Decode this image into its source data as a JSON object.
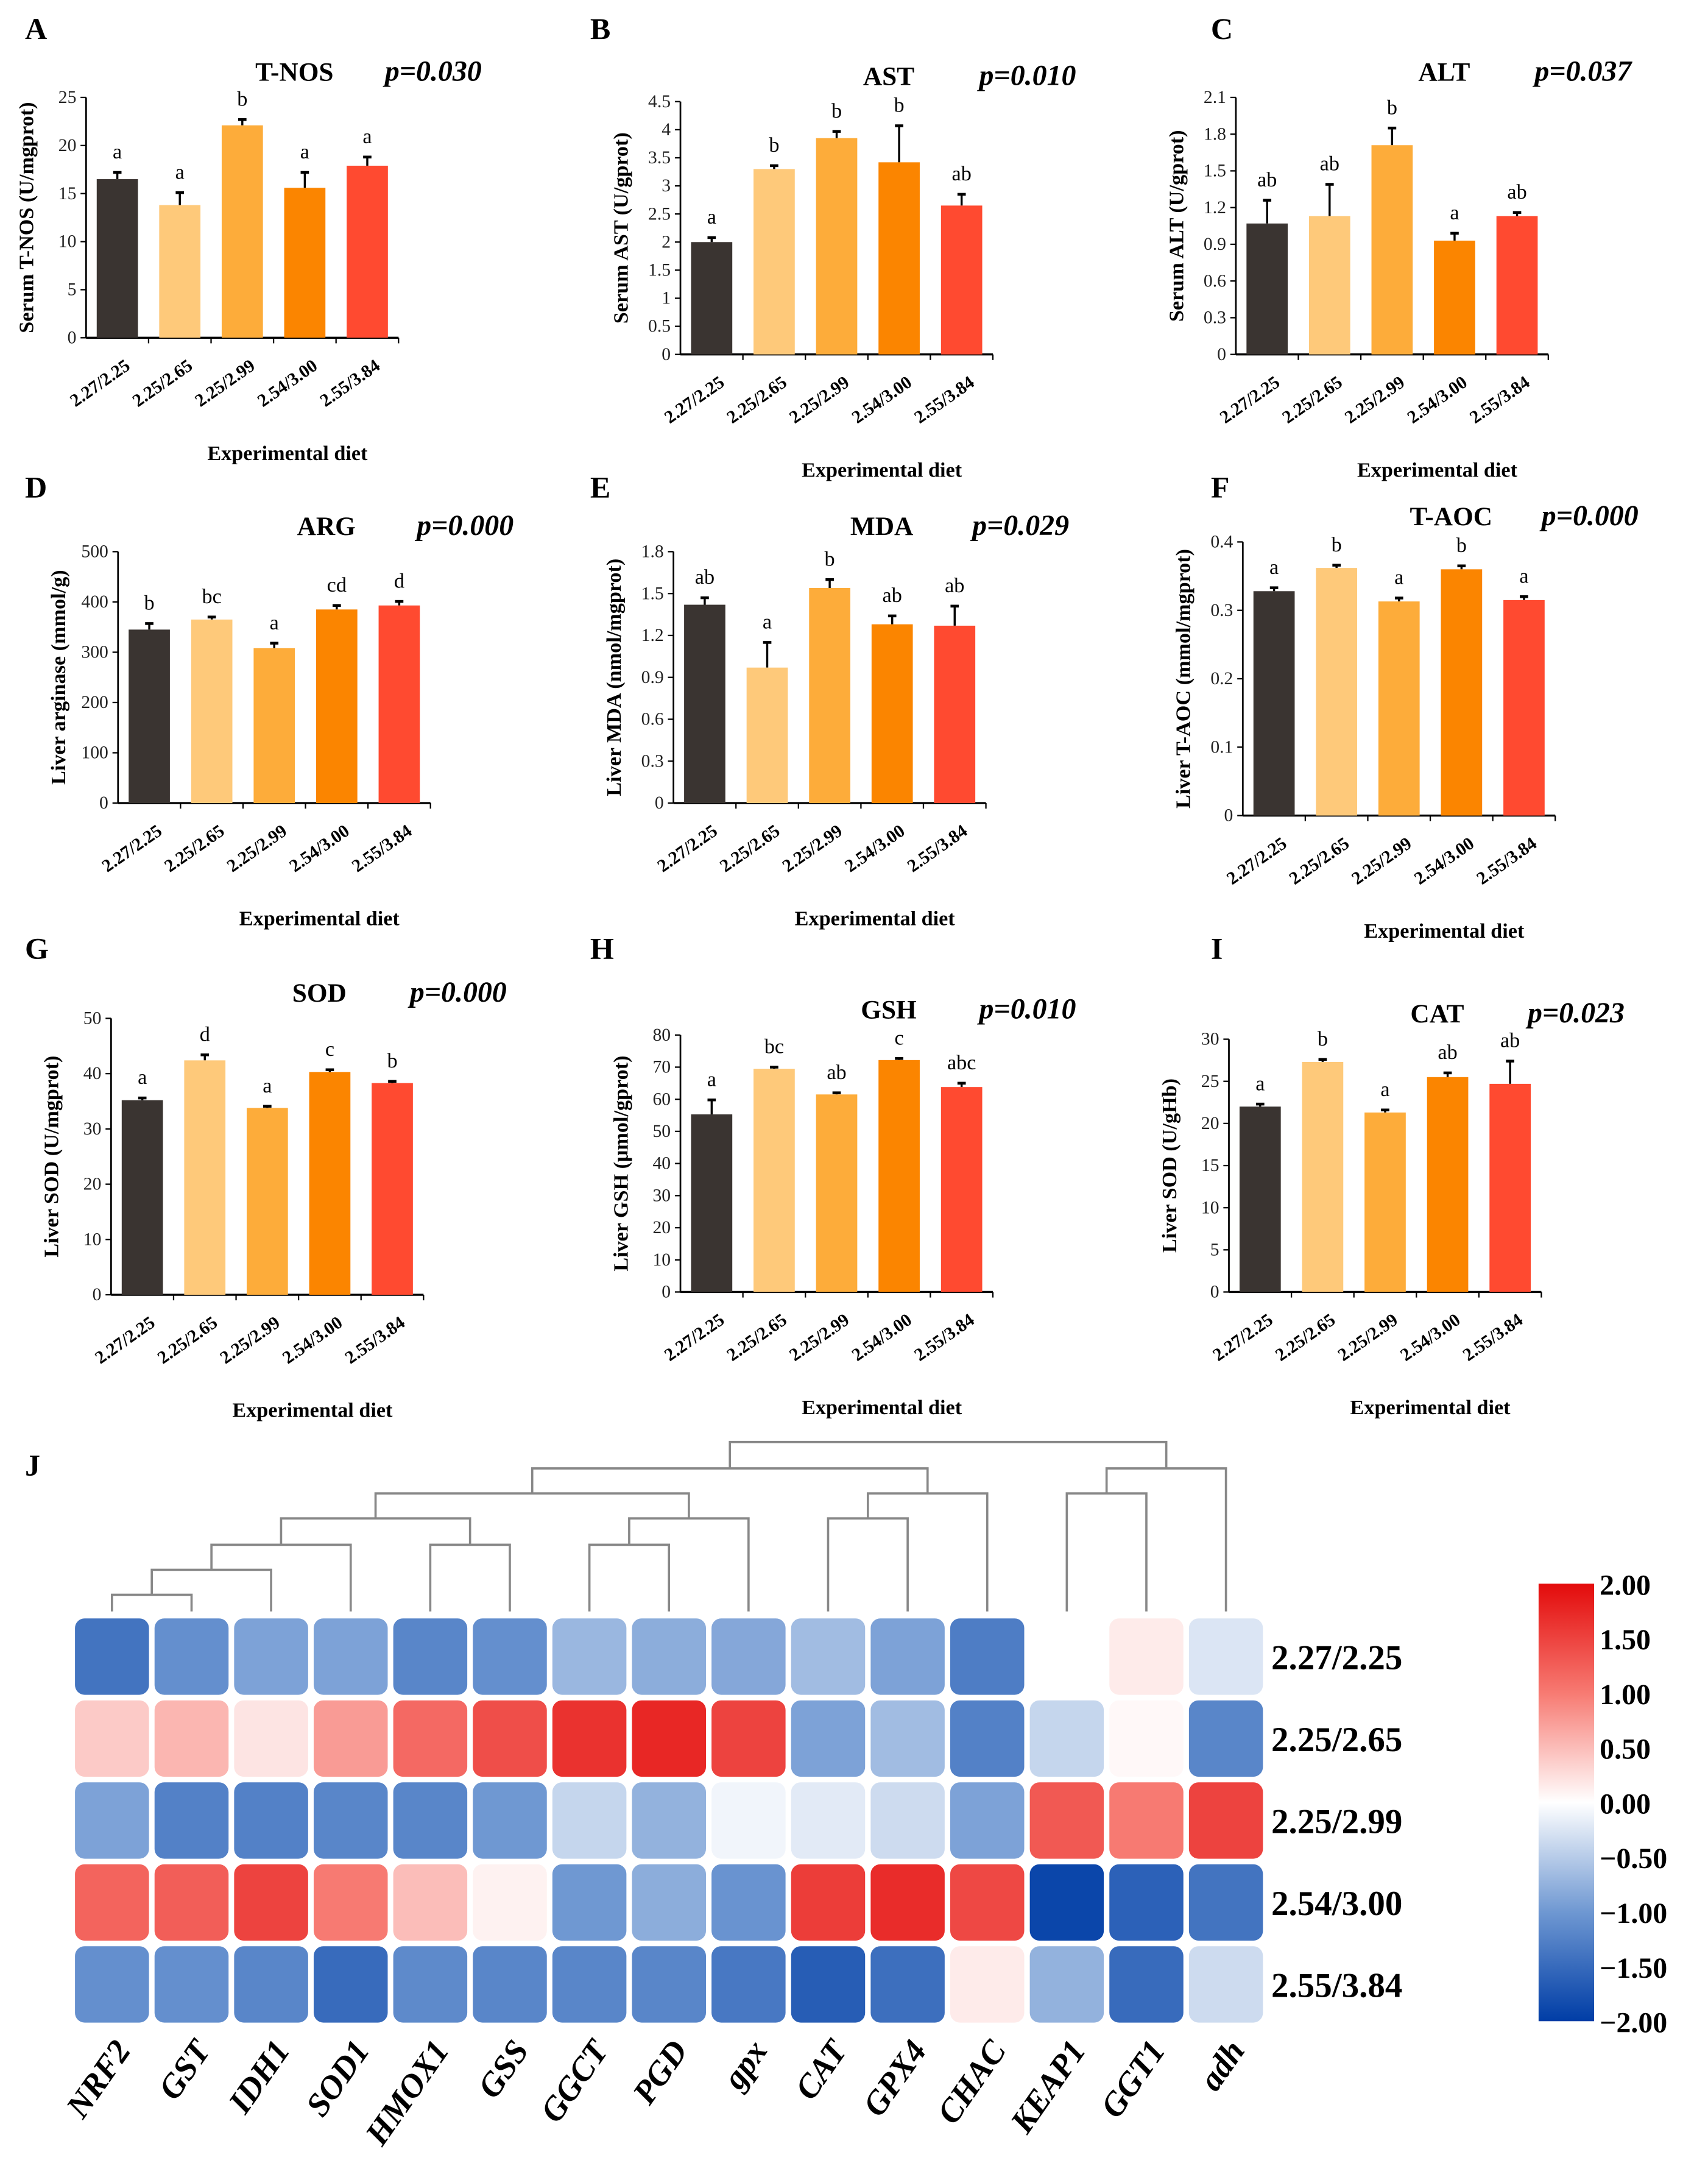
{
  "colors": {
    "groups": [
      "#3a3431",
      "#fec97a",
      "#fdac3a",
      "#fb8500",
      "#ff4a30"
    ]
  },
  "chart_data": [
    {
      "panel": "A",
      "type": "bar",
      "title": "T-NOS",
      "p_value": "p=0.030",
      "ylabel": "Serum T-NOS (U/mgprot)",
      "xlabel": "Experimental diet",
      "categories": [
        "2.27/2.25",
        "2.25/2.65",
        "2.25/2.99",
        "2.54/3.00",
        "2.55/3.84"
      ],
      "values": [
        16.5,
        13.8,
        22.1,
        15.6,
        17.9
      ],
      "errors": [
        0.7,
        1.3,
        0.6,
        1.6,
        0.9
      ],
      "letters": [
        "a",
        "a",
        "b",
        "a",
        "a"
      ],
      "ylim": [
        0,
        25
      ],
      "ystep": 5,
      "yticks": [
        "0",
        "5",
        "10",
        "15",
        "20",
        "25"
      ]
    },
    {
      "panel": "B",
      "type": "bar",
      "title": "AST",
      "p_value": "p=0.010",
      "ylabel": "Serum AST (U/gprot)",
      "xlabel": "Experimental diet",
      "categories": [
        "2.27/2.25",
        "2.25/2.65",
        "2.25/2.99",
        "2.54/3.00",
        "2.55/3.84"
      ],
      "values": [
        2.0,
        3.3,
        3.85,
        3.42,
        2.65
      ],
      "errors": [
        0.08,
        0.06,
        0.12,
        0.65,
        0.2
      ],
      "letters": [
        "a",
        "b",
        "b",
        "b",
        "ab"
      ],
      "ylim": [
        0,
        4.5
      ],
      "ystep": 0.5,
      "yticks": [
        "0",
        "0.5",
        "1",
        "1.5",
        "2",
        "2.5",
        "3",
        "3.5",
        "4",
        "4.5"
      ]
    },
    {
      "panel": "C",
      "type": "bar",
      "title": "ALT",
      "p_value": "p=0.037",
      "ylabel": "Serum ALT (U/gprot)",
      "xlabel": "Experimental diet",
      "categories": [
        "2.27/2.25",
        "2.25/2.65",
        "2.25/2.99",
        "2.54/3.00",
        "2.55/3.84"
      ],
      "values": [
        1.07,
        1.13,
        1.71,
        0.93,
        1.13
      ],
      "errors": [
        0.19,
        0.26,
        0.14,
        0.06,
        0.03
      ],
      "letters": [
        "ab",
        "ab",
        "b",
        "a",
        "ab"
      ],
      "ylim": [
        0,
        2.1
      ],
      "ystep": 0.3,
      "yticks": [
        "0",
        "0.3",
        "0.6",
        "0.9",
        "1.2",
        "1.5",
        "1.8",
        "2.1"
      ]
    },
    {
      "panel": "D",
      "type": "bar",
      "title": "ARG",
      "p_value": "p=0.000",
      "ylabel": "Liver arginase (mmol/g)",
      "xlabel": "Experimental diet",
      "categories": [
        "2.27/2.25",
        "2.25/2.65",
        "2.25/2.99",
        "2.54/3.00",
        "2.55/3.84"
      ],
      "values": [
        345,
        365,
        308,
        385,
        393
      ],
      "errors": [
        12,
        5,
        10,
        8,
        8
      ],
      "letters": [
        "b",
        "bc",
        "a",
        "cd",
        "d"
      ],
      "ylim": [
        0,
        500
      ],
      "ystep": 100,
      "yticks": [
        "0",
        "100",
        "200",
        "300",
        "400",
        "500"
      ]
    },
    {
      "panel": "E",
      "type": "bar",
      "title": "MDA",
      "p_value": "p=0.029",
      "ylabel": "Liver MDA (nmol/mgprot)",
      "xlabel": "Experimental diet",
      "categories": [
        "2.27/2.25",
        "2.25/2.65",
        "2.25/2.99",
        "2.54/3.00",
        "2.55/3.84"
      ],
      "values": [
        1.42,
        0.97,
        1.54,
        1.28,
        1.27
      ],
      "errors": [
        0.05,
        0.18,
        0.06,
        0.06,
        0.14
      ],
      "letters": [
        "ab",
        "a",
        "b",
        "ab",
        "ab"
      ],
      "ylim": [
        0,
        1.8
      ],
      "ystep": 0.3,
      "yticks": [
        "0",
        "0.3",
        "0.6",
        "0.9",
        "1.2",
        "1.5",
        "1.8"
      ]
    },
    {
      "panel": "F",
      "type": "bar",
      "title": "T-AOC",
      "p_value": "p=0.000",
      "ylabel": "Liver T-AOC (mmol/mgprot)",
      "xlabel": "Experimental diet",
      "categories": [
        "2.27/2.25",
        "2.25/2.65",
        "2.25/2.99",
        "2.54/3.00",
        "2.55/3.84"
      ],
      "values": [
        0.328,
        0.362,
        0.313,
        0.36,
        0.315
      ],
      "errors": [
        0.005,
        0.004,
        0.005,
        0.005,
        0.005
      ],
      "letters": [
        "a",
        "b",
        "a",
        "b",
        "a"
      ],
      "ylim": [
        0,
        0.4
      ],
      "ystep": 0.1,
      "yticks": [
        "0",
        "0.1",
        "0.2",
        "0.3",
        "0.4"
      ]
    },
    {
      "panel": "G",
      "type": "bar",
      "title": "SOD",
      "p_value": "p=0.000",
      "ylabel": "Liver SOD (U/mgprot)",
      "xlabel": "Experimental diet",
      "categories": [
        "2.27/2.25",
        "2.25/2.65",
        "2.25/2.99",
        "2.54/3.00",
        "2.55/3.84"
      ],
      "values": [
        35.2,
        42.4,
        33.8,
        40.3,
        38.3
      ],
      "errors": [
        0.4,
        1.0,
        0.3,
        0.4,
        0.3
      ],
      "letters": [
        "a",
        "d",
        "a",
        "c",
        "b"
      ],
      "ylim": [
        0,
        50
      ],
      "ystep": 10,
      "yticks": [
        "0",
        "10",
        "20",
        "30",
        "40",
        "50"
      ]
    },
    {
      "panel": "H",
      "type": "bar",
      "title": "GSH",
      "p_value": "p=0.010",
      "ylabel": "Liver GSH (μmol/gprot)",
      "xlabel": "Experimental diet",
      "categories": [
        "2.27/2.25",
        "2.25/2.65",
        "2.25/2.99",
        "2.54/3.00",
        "2.55/3.84"
      ],
      "values": [
        55.3,
        69.5,
        61.5,
        72.2,
        63.8
      ],
      "errors": [
        4.5,
        0.5,
        0.5,
        0.5,
        1.2
      ],
      "letters": [
        "a",
        "bc",
        "ab",
        "c",
        "abc"
      ],
      "ylim": [
        0,
        80
      ],
      "ystep": 10,
      "yticks": [
        "0",
        "10",
        "20",
        "30",
        "40",
        "50",
        "60",
        "70",
        "80"
      ]
    },
    {
      "panel": "I",
      "type": "bar",
      "title": "CAT",
      "p_value": "p=0.023",
      "ylabel": "Liver SOD (U/gHb)",
      "xlabel": "Experimental diet",
      "categories": [
        "2.27/2.25",
        "2.25/2.65",
        "2.25/2.99",
        "2.54/3.00",
        "2.55/3.84"
      ],
      "values": [
        22.0,
        27.3,
        21.3,
        25.5,
        24.7
      ],
      "errors": [
        0.3,
        0.3,
        0.3,
        0.5,
        2.7
      ],
      "letters": [
        "a",
        "b",
        "a",
        "ab",
        "ab"
      ],
      "ylim": [
        0,
        30
      ],
      "ystep": 5,
      "yticks": [
        "0",
        "5",
        "10",
        "15",
        "20",
        "25",
        "30"
      ]
    },
    {
      "panel": "J",
      "type": "heatmap",
      "columns": [
        "NRF2",
        "GST",
        "IDH1",
        "SOD1",
        "HMOX1",
        "GSS",
        "GGCT",
        "PGD",
        "gpx",
        "CAT",
        "GPX4",
        "CHAC",
        "KEAP1",
        "GGT1",
        "adh"
      ],
      "rows": [
        "2.27/2.25",
        "2.25/2.65",
        "2.25/2.99",
        "2.54/3.00",
        "2.55/3.84"
      ],
      "values": [
        [
          -1.4,
          -1.1,
          -0.9,
          -0.9,
          -1.2,
          -1.1,
          -0.7,
          -0.8,
          -0.85,
          -0.65,
          -0.9,
          -1.3,
          0.0,
          0.15,
          -0.25
        ],
        [
          0.4,
          0.55,
          0.2,
          0.75,
          1.15,
          1.4,
          1.65,
          1.75,
          1.5,
          -0.9,
          -0.65,
          -1.25,
          -0.4,
          0.05,
          -1.2
        ],
        [
          -0.9,
          -1.25,
          -1.25,
          -1.2,
          -1.2,
          -1.0,
          -0.4,
          -0.75,
          -0.1,
          -0.2,
          -0.35,
          -0.9,
          1.3,
          1.0,
          1.5
        ],
        [
          1.2,
          1.25,
          1.5,
          1.0,
          0.5,
          0.1,
          -1.0,
          -0.8,
          -1.05,
          1.55,
          1.7,
          1.45,
          -1.9,
          -1.6,
          -1.4
        ],
        [
          -1.1,
          -1.1,
          -1.2,
          -1.5,
          -1.15,
          -1.2,
          -1.2,
          -1.2,
          -1.35,
          -1.65,
          -1.45,
          0.15,
          -0.75,
          -1.5,
          -0.35
        ]
      ],
      "colorbar": {
        "range": [
          -2,
          2
        ],
        "ticks": [
          "2.00",
          "1.50",
          "1.00",
          "0.50",
          "0.00",
          "−0.50",
          "−1.00",
          "−1.50",
          "−2.00"
        ],
        "colors": [
          "#003da6",
          "#6f98d2",
          "#ffffff",
          "#f77a72",
          "#e30b0b"
        ]
      }
    }
  ]
}
